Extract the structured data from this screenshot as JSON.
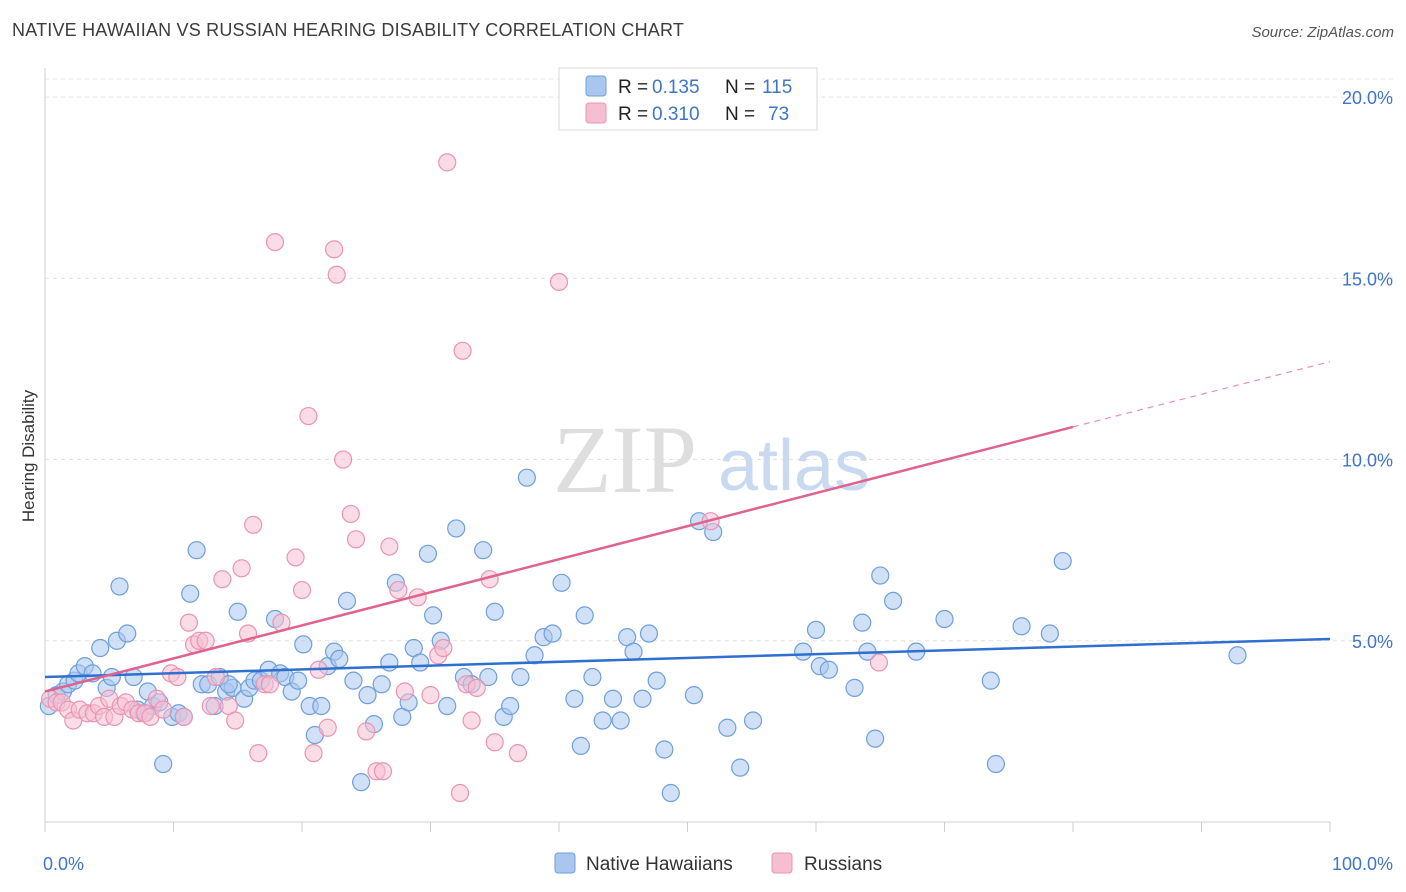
{
  "title": "NATIVE HAWAIIAN VS RUSSIAN HEARING DISABILITY CORRELATION CHART",
  "source": "Source: ZipAtlas.com",
  "watermark": {
    "part1": "ZIP",
    "part2": "atlas"
  },
  "legend": {
    "rows": [
      {
        "r_label": "R =",
        "r_value": "0.135",
        "n_label": "N =",
        "n_value": "115"
      },
      {
        "r_label": "R =",
        "r_value": "0.310",
        "n_label": "N =",
        "n_value": "73"
      }
    ]
  },
  "bottom_legend": [
    "Native Hawaiians",
    "Russians"
  ],
  "colors": {
    "blue_fill": "#a9c6ef",
    "blue_stroke": "#6f9fdc",
    "blue_line": "#2f6fd0",
    "pink_fill": "#f6bfd1",
    "pink_stroke": "#ec93b2",
    "pink_line": "#e0628f",
    "tick_color": "#3f74c8"
  },
  "chart_data": {
    "type": "scatter",
    "title": "NATIVE HAWAIIAN VS RUSSIAN HEARING DISABILITY CORRELATION CHART",
    "xlabel": "",
    "ylabel": "Hearing Disability",
    "xlim": [
      0,
      100
    ],
    "ylim": [
      0,
      20.5
    ],
    "y_ticks": [
      5,
      10,
      15,
      20
    ],
    "y_tick_labels": [
      "5.0%",
      "10.0%",
      "15.0%",
      "20.0%"
    ],
    "x_tick_labels": [
      "0.0%",
      "100.0%"
    ],
    "grid": "horizontal dashed",
    "legend_position": "top-center",
    "series": [
      {
        "name": "Native Hawaiians",
        "r": 0.135,
        "n": 115,
        "trend": {
          "x": [
            0,
            100
          ],
          "y": [
            4.0,
            5.05
          ]
        },
        "points": [
          [
            0.3,
            3.2
          ],
          [
            0.9,
            3.5
          ],
          [
            1.4,
            3.6
          ],
          [
            1.8,
            3.8
          ],
          [
            2.3,
            3.9
          ],
          [
            2.6,
            4.1
          ],
          [
            3.1,
            4.3
          ],
          [
            3.7,
            4.1
          ],
          [
            4.3,
            4.8
          ],
          [
            4.8,
            3.7
          ],
          [
            5.2,
            4.0
          ],
          [
            5.6,
            5.0
          ],
          [
            5.8,
            6.5
          ],
          [
            6.4,
            5.2
          ],
          [
            6.9,
            4.0
          ],
          [
            7.2,
            3.1
          ],
          [
            7.7,
            3.0
          ],
          [
            8.0,
            3.6
          ],
          [
            8.4,
            3.2
          ],
          [
            8.9,
            3.3
          ],
          [
            9.2,
            1.6
          ],
          [
            9.9,
            2.9
          ],
          [
            10.4,
            3.0
          ],
          [
            10.8,
            2.9
          ],
          [
            11.3,
            6.3
          ],
          [
            11.8,
            7.5
          ],
          [
            12.2,
            3.8
          ],
          [
            12.7,
            3.8
          ],
          [
            13.2,
            3.2
          ],
          [
            13.6,
            4.0
          ],
          [
            14.1,
            3.6
          ],
          [
            14.6,
            3.7
          ],
          [
            15.0,
            5.8
          ],
          [
            15.5,
            3.4
          ],
          [
            15.9,
            3.7
          ],
          [
            16.3,
            3.9
          ],
          [
            16.8,
            3.9
          ],
          [
            17.4,
            4.2
          ],
          [
            17.9,
            5.6
          ],
          [
            18.3,
            4.1
          ],
          [
            18.7,
            4.0
          ],
          [
            19.2,
            3.6
          ],
          [
            19.7,
            3.9
          ],
          [
            20.1,
            4.9
          ],
          [
            20.6,
            3.2
          ],
          [
            21.0,
            2.4
          ],
          [
            21.5,
            3.2
          ],
          [
            22.0,
            4.3
          ],
          [
            22.5,
            4.7
          ],
          [
            22.9,
            4.5
          ],
          [
            23.5,
            6.1
          ],
          [
            24.0,
            3.9
          ],
          [
            24.6,
            1.1
          ],
          [
            25.1,
            3.5
          ],
          [
            25.6,
            2.7
          ],
          [
            26.2,
            3.8
          ],
          [
            26.8,
            4.4
          ],
          [
            27.3,
            6.6
          ],
          [
            27.8,
            2.9
          ],
          [
            28.3,
            3.3
          ],
          [
            28.7,
            4.8
          ],
          [
            29.2,
            4.4
          ],
          [
            29.8,
            7.4
          ],
          [
            30.2,
            5.7
          ],
          [
            30.8,
            5.0
          ],
          [
            31.3,
            3.2
          ],
          [
            32.0,
            8.1
          ],
          [
            32.6,
            4.0
          ],
          [
            33.2,
            3.8
          ],
          [
            34.1,
            7.5
          ],
          [
            34.5,
            4.0
          ],
          [
            35.0,
            5.8
          ],
          [
            35.7,
            2.9
          ],
          [
            36.2,
            3.2
          ],
          [
            37.0,
            4.0
          ],
          [
            37.5,
            9.5
          ],
          [
            38.1,
            4.6
          ],
          [
            38.8,
            5.1
          ],
          [
            39.5,
            5.2
          ],
          [
            40.2,
            6.6
          ],
          [
            41.2,
            3.4
          ],
          [
            41.7,
            2.1
          ],
          [
            42.0,
            5.7
          ],
          [
            42.6,
            4.0
          ],
          [
            43.4,
            2.8
          ],
          [
            44.2,
            3.4
          ],
          [
            44.8,
            2.8
          ],
          [
            45.3,
            5.1
          ],
          [
            45.8,
            4.7
          ],
          [
            46.5,
            3.4
          ],
          [
            47.0,
            5.2
          ],
          [
            47.6,
            3.9
          ],
          [
            48.2,
            2.0
          ],
          [
            48.7,
            0.8
          ],
          [
            50.5,
            3.5
          ],
          [
            50.9,
            8.3
          ],
          [
            52.0,
            8.0
          ],
          [
            53.1,
            2.6
          ],
          [
            54.1,
            1.5
          ],
          [
            55.1,
            2.8
          ],
          [
            59.0,
            4.7
          ],
          [
            60.0,
            5.3
          ],
          [
            60.3,
            4.3
          ],
          [
            61.0,
            4.2
          ],
          [
            63.0,
            3.7
          ],
          [
            63.6,
            5.5
          ],
          [
            64.0,
            4.7
          ],
          [
            64.6,
            2.3
          ],
          [
            65.0,
            6.8
          ],
          [
            66.0,
            6.1
          ],
          [
            67.8,
            4.7
          ],
          [
            70.0,
            5.6
          ],
          [
            73.6,
            3.9
          ],
          [
            74.0,
            1.6
          ],
          [
            76.0,
            5.4
          ],
          [
            78.2,
            5.2
          ],
          [
            79.2,
            7.2
          ],
          [
            92.8,
            4.6
          ],
          [
            14.3,
            3.8
          ]
        ]
      },
      {
        "name": "Russians",
        "r": 0.31,
        "n": 73,
        "trend": {
          "x": [
            0,
            80
          ],
          "y": [
            3.6,
            10.9
          ]
        },
        "trend_dashed": {
          "x": [
            80,
            100
          ],
          "y": [
            10.9,
            12.7
          ]
        },
        "points": [
          [
            0.4,
            3.4
          ],
          [
            0.9,
            3.3
          ],
          [
            1.3,
            3.3
          ],
          [
            1.8,
            3.1
          ],
          [
            2.2,
            2.8
          ],
          [
            2.7,
            3.1
          ],
          [
            3.3,
            3.0
          ],
          [
            3.8,
            3.0
          ],
          [
            4.2,
            3.2
          ],
          [
            4.6,
            2.9
          ],
          [
            5.0,
            3.4
          ],
          [
            5.4,
            2.9
          ],
          [
            5.9,
            3.2
          ],
          [
            6.3,
            3.3
          ],
          [
            6.8,
            3.1
          ],
          [
            7.3,
            3.0
          ],
          [
            7.8,
            3.0
          ],
          [
            8.2,
            2.9
          ],
          [
            8.7,
            3.4
          ],
          [
            9.2,
            3.1
          ],
          [
            9.8,
            4.1
          ],
          [
            10.3,
            4.0
          ],
          [
            10.8,
            2.9
          ],
          [
            11.2,
            5.5
          ],
          [
            11.6,
            4.9
          ],
          [
            12.0,
            5.0
          ],
          [
            12.5,
            5.0
          ],
          [
            12.9,
            3.2
          ],
          [
            13.3,
            4.0
          ],
          [
            13.8,
            6.7
          ],
          [
            14.3,
            3.2
          ],
          [
            14.8,
            2.8
          ],
          [
            15.3,
            7.0
          ],
          [
            15.8,
            5.2
          ],
          [
            16.2,
            8.2
          ],
          [
            16.6,
            1.9
          ],
          [
            17.1,
            3.8
          ],
          [
            17.5,
            3.8
          ],
          [
            17.9,
            16.0
          ],
          [
            18.4,
            5.5
          ],
          [
            19.5,
            7.3
          ],
          [
            20.0,
            6.4
          ],
          [
            20.5,
            11.2
          ],
          [
            20.9,
            1.9
          ],
          [
            21.3,
            4.2
          ],
          [
            22.0,
            2.6
          ],
          [
            22.5,
            15.8
          ],
          [
            22.7,
            15.1
          ],
          [
            23.2,
            10.0
          ],
          [
            23.8,
            8.5
          ],
          [
            24.2,
            7.8
          ],
          [
            25.0,
            2.5
          ],
          [
            25.8,
            1.4
          ],
          [
            26.3,
            1.4
          ],
          [
            26.8,
            7.6
          ],
          [
            27.5,
            6.4
          ],
          [
            28.0,
            3.6
          ],
          [
            29.0,
            6.2
          ],
          [
            30.0,
            3.5
          ],
          [
            30.6,
            4.6
          ],
          [
            31.0,
            4.8
          ],
          [
            31.3,
            18.2
          ],
          [
            32.3,
            0.8
          ],
          [
            32.5,
            13.0
          ],
          [
            32.8,
            3.8
          ],
          [
            33.2,
            2.8
          ],
          [
            33.6,
            3.7
          ],
          [
            34.6,
            6.7
          ],
          [
            35.0,
            2.2
          ],
          [
            36.8,
            1.9
          ],
          [
            40.0,
            14.9
          ],
          [
            51.8,
            8.3
          ],
          [
            64.9,
            4.4
          ]
        ]
      }
    ]
  }
}
